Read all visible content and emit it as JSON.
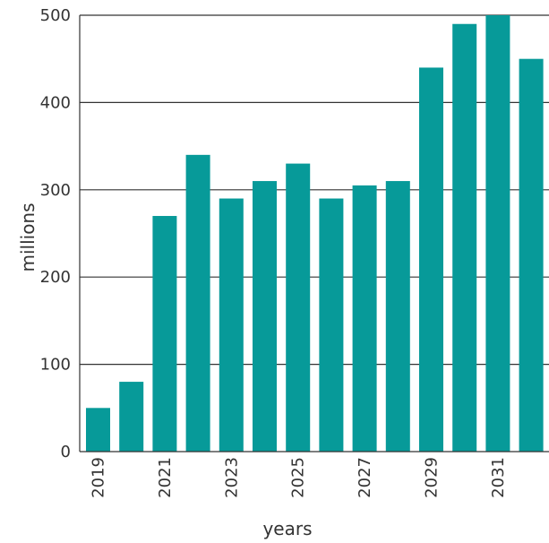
{
  "chart_data": {
    "type": "bar",
    "title": "",
    "xlabel": "years",
    "ylabel": "millions",
    "categories": [
      "2019",
      "2020",
      "2021",
      "2022",
      "2023",
      "2024",
      "2025",
      "2026",
      "2027",
      "2028",
      "2029",
      "2030",
      "2031",
      "2032"
    ],
    "values": [
      50,
      80,
      270,
      340,
      290,
      310,
      330,
      290,
      305,
      310,
      440,
      490,
      500,
      450
    ],
    "x_tick_labels": [
      "2019",
      "2021",
      "2023",
      "2025",
      "2027",
      "2029",
      "2031"
    ],
    "y_ticks": [
      0,
      100,
      200,
      300,
      400,
      500
    ],
    "ylim": [
      0,
      500
    ],
    "grid": "horizontal",
    "legend": "none",
    "colors": {
      "bar": "#079a99",
      "axis": "#333333",
      "grid": "#333333"
    }
  }
}
